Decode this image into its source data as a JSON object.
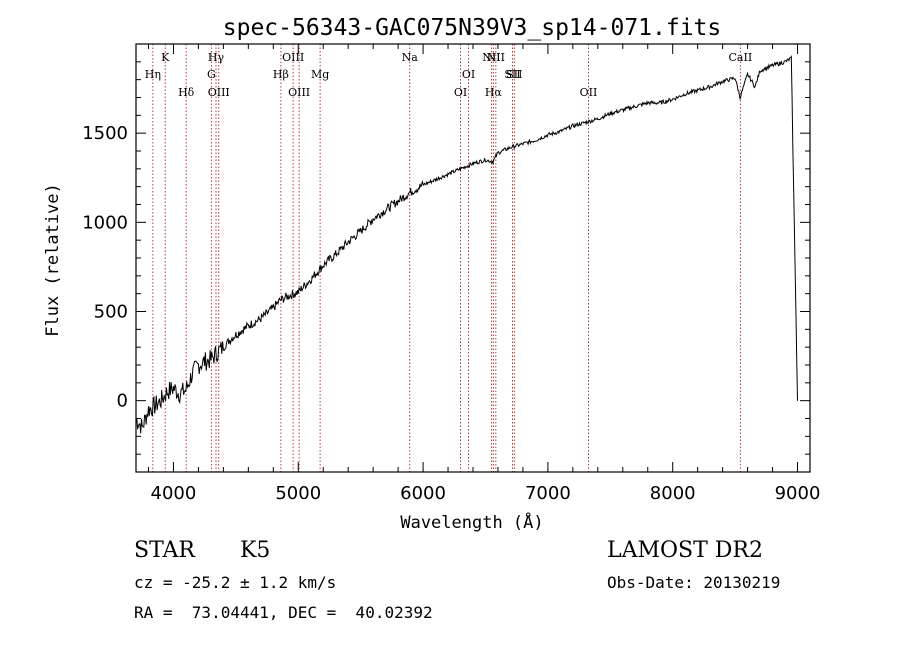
{
  "chart_data": {
    "type": "line",
    "title": "spec-56343-GAC075N39V3_sp14-071.fits",
    "xlabel": "Wavelength (Å)",
    "ylabel": "Flux (relative)",
    "xlim": [
      3700,
      9100
    ],
    "ylim": [
      -400,
      2000
    ],
    "xticks": [
      "4000",
      "5000",
      "6000",
      "7000",
      "8000",
      "9000"
    ],
    "yticks": [
      "0",
      "500",
      "1000",
      "1500"
    ],
    "grid": false,
    "series": [
      {
        "x": [
          3700,
          3750,
          3800,
          3850,
          3900,
          3950,
          4000,
          4050,
          4100,
          4150,
          4200,
          4250,
          4300,
          4350,
          4400,
          4450,
          4500,
          4600,
          4700,
          4800,
          4850,
          4900,
          5000,
          5100,
          5200,
          5300,
          5400,
          5500,
          5600,
          5700,
          5800,
          5900,
          5950,
          6000,
          6100,
          6200,
          6300,
          6400,
          6500,
          6560,
          6600,
          6700,
          6800,
          6900,
          7000,
          7100,
          7200,
          7300,
          7400,
          7500,
          7600,
          7700,
          7800,
          7900,
          8000,
          8100,
          8200,
          8300,
          8400,
          8500,
          8540,
          8600,
          8660,
          8700,
          8800,
          8900,
          8950,
          9000
        ],
        "y": [
          -100,
          -150,
          -50,
          -30,
          0,
          50,
          70,
          40,
          60,
          150,
          200,
          220,
          230,
          270,
          300,
          340,
          370,
          420,
          460,
          520,
          560,
          580,
          610,
          680,
          760,
          820,
          890,
          950,
          1020,
          1070,
          1120,
          1170,
          1190,
          1210,
          1240,
          1270,
          1300,
          1330,
          1350,
          1340,
          1390,
          1420,
          1440,
          1460,
          1490,
          1510,
          1540,
          1560,
          1580,
          1610,
          1630,
          1650,
          1670,
          1670,
          1690,
          1720,
          1740,
          1760,
          1790,
          1810,
          1700,
          1830,
          1760,
          1850,
          1880,
          1900,
          1920,
          0
        ]
      }
    ],
    "lines": [
      {
        "x": 3835,
        "label": "Hη",
        "row": 2
      },
      {
        "x": 3934,
        "label": "K",
        "row": 1
      },
      {
        "x": 4102,
        "label": "Hδ",
        "row": 3
      },
      {
        "x": 4304,
        "label": "G",
        "row": 2
      },
      {
        "x": 4341,
        "label": "Hγ",
        "row": 1
      },
      {
        "x": 4363,
        "label": "OIII",
        "row": 3
      },
      {
        "x": 4861,
        "label": "Hβ",
        "row": 2
      },
      {
        "x": 4959,
        "label": "OIII",
        "row": 1
      },
      {
        "x": 5007,
        "label": "OIII",
        "row": 3
      },
      {
        "x": 5175,
        "label": "Mg",
        "row": 2
      },
      {
        "x": 5893,
        "label": "Na",
        "row": 1
      },
      {
        "x": 6300,
        "label": "OI",
        "row": 3
      },
      {
        "x": 6364,
        "label": "OI",
        "row": 2
      },
      {
        "x": 6548,
        "label": "NII",
        "row": 1
      },
      {
        "x": 6563,
        "label": "Hα",
        "row": 3
      },
      {
        "x": 6583,
        "label": "NII",
        "row": 1
      },
      {
        "x": 6716,
        "label": "SII",
        "row": 2
      },
      {
        "x": 6731,
        "label": "SII",
        "row": 2
      },
      {
        "x": 7325,
        "label": "OII",
        "row": 3
      },
      {
        "x": 8542,
        "label": "CaII",
        "row": 1
      }
    ]
  },
  "info": {
    "class_label": "STAR",
    "subclass": "K5",
    "survey": "LAMOST DR2",
    "cz": "cz = -25.2 ± 1.2 km/s",
    "obs_date": "Obs-Date: 20130219",
    "coords": "RA =  73.04441, DEC =  40.02392"
  }
}
